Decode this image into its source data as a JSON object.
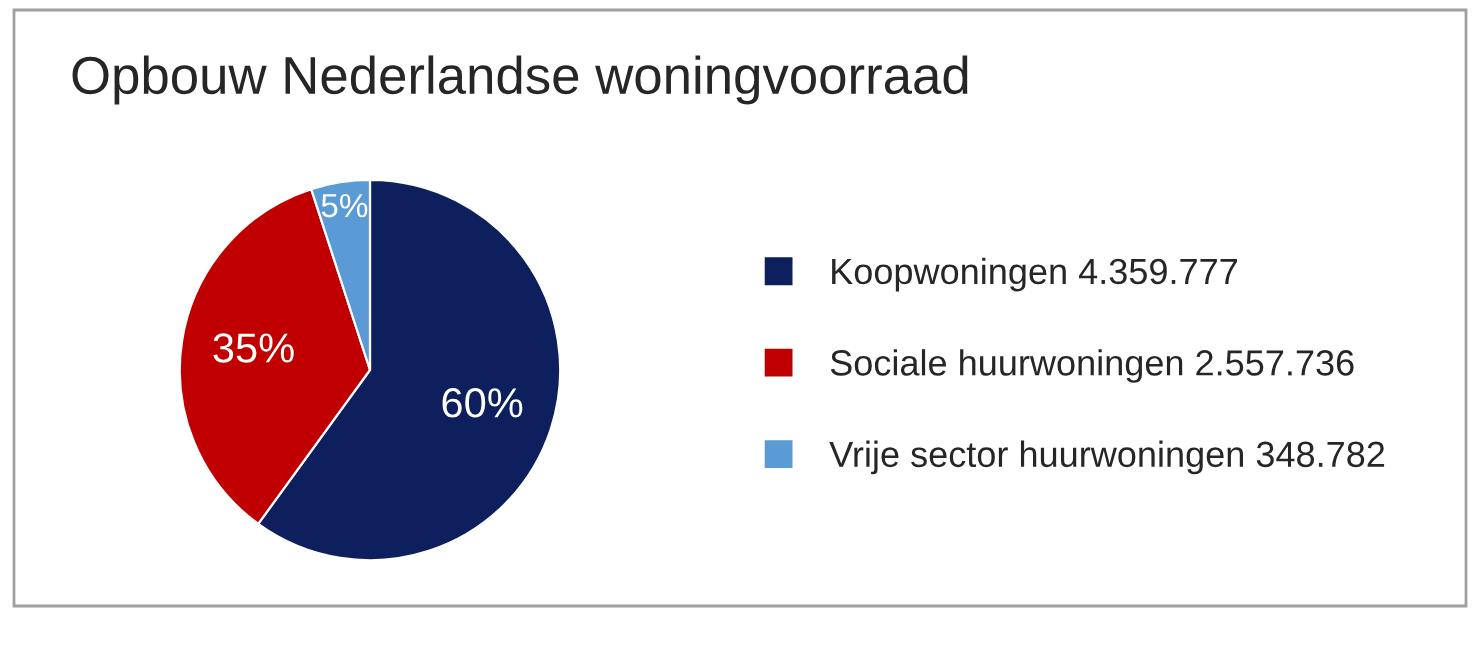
{
  "chart_data": {
    "type": "pie",
    "title": "Opbouw Nederlandse woningvoorraad",
    "categories": [
      "Koopwoningen 4.359.777",
      "Sociale huurwoningen 2.557.736",
      "Vrije sector huurwoningen 348.782"
    ],
    "values": [
      60,
      35,
      5
    ],
    "colors": [
      "#0d1f5c",
      "#c00000",
      "#5b9bd5"
    ],
    "value_labels": [
      "60%",
      "35%",
      "5%"
    ],
    "legend": "right"
  }
}
